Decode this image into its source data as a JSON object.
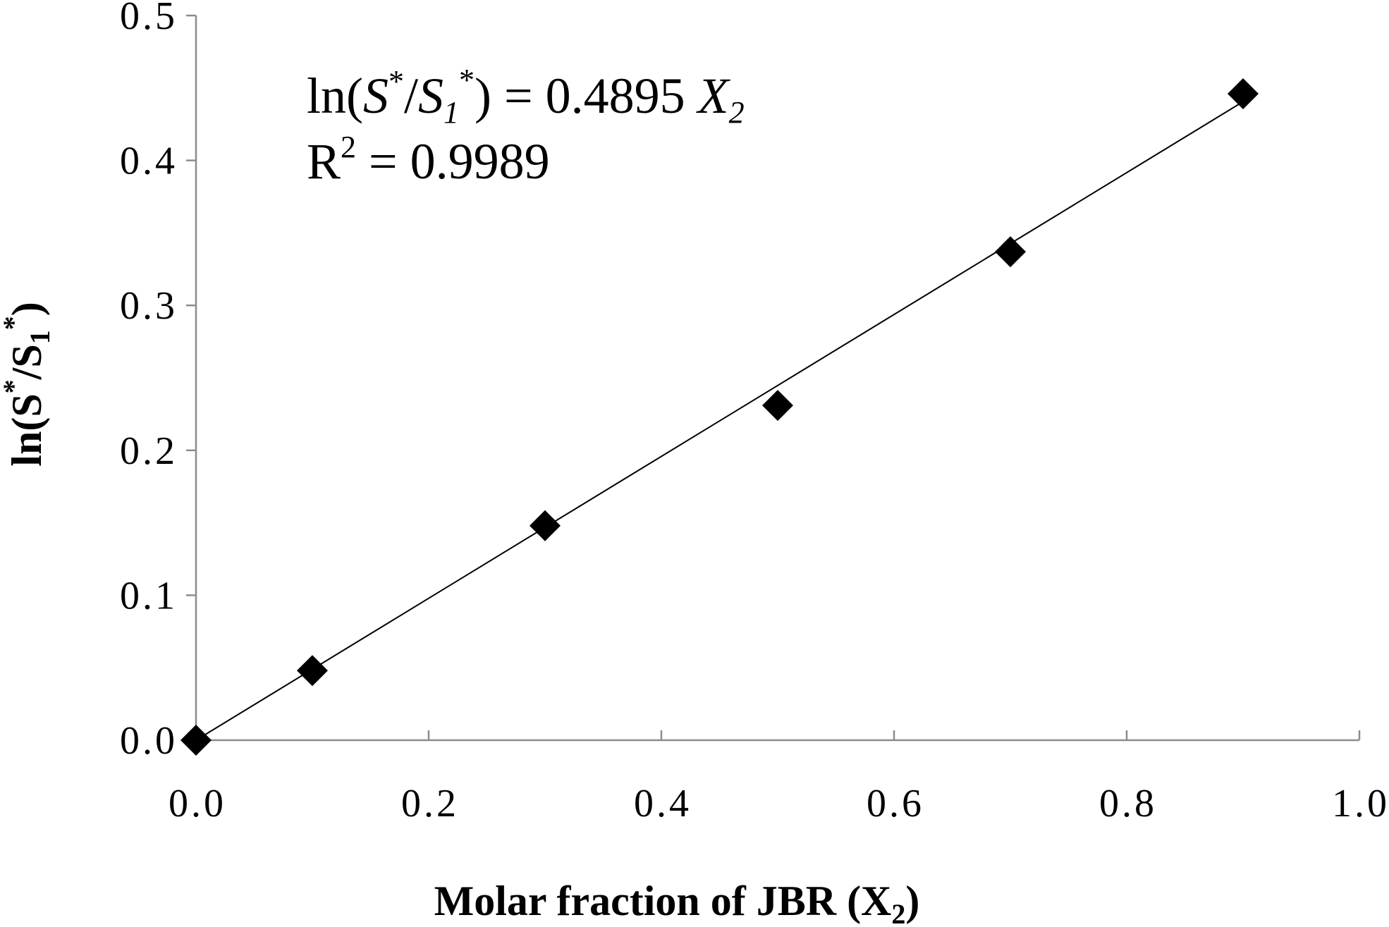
{
  "chart_data": {
    "type": "scatter",
    "xlabel": {
      "prefix": "Molar fraction of JBR (X",
      "sub": "2",
      "suffix": ")"
    },
    "ylabel": {
      "prefix": "ln(S",
      "sup1": "*",
      "mid": "/S",
      "sub": "1",
      "sup2": "*",
      "suffix": ")"
    },
    "xlim": [
      0.0,
      1.0
    ],
    "ylim": [
      0.0,
      0.5
    ],
    "x_ticks": [
      "0.0",
      "0.2",
      "0.4",
      "0.6",
      "0.8",
      "1.0"
    ],
    "y_ticks": [
      "0.0",
      "0.1",
      "0.2",
      "0.3",
      "0.4",
      "0.5"
    ],
    "grid": false,
    "series": [
      {
        "marker": "diamond",
        "color": "#000000",
        "points": [
          {
            "x": 0.0,
            "y": 0.0
          },
          {
            "x": 0.1,
            "y": 0.048
          },
          {
            "x": 0.3,
            "y": 0.148
          },
          {
            "x": 0.5,
            "y": 0.231
          },
          {
            "x": 0.7,
            "y": 0.337
          },
          {
            "x": 0.9,
            "y": 0.446
          }
        ]
      }
    ],
    "trendline": {
      "slope": 0.4895,
      "intercept": 0,
      "x_range": [
        0.0,
        0.9
      ],
      "color": "#000000"
    },
    "annotations": {
      "equation": {
        "ln": "ln(",
        "s": "S",
        "s_sup": "*",
        "slash": "/",
        "s1": "S",
        "s1_sub": "1",
        "s1_sup": "*",
        "rhs": ") = 0.4895 ",
        "x": "X",
        "x_sub": "2"
      },
      "r2": {
        "r": "R",
        "sup": "2",
        "value": " = 0.9989"
      }
    }
  }
}
